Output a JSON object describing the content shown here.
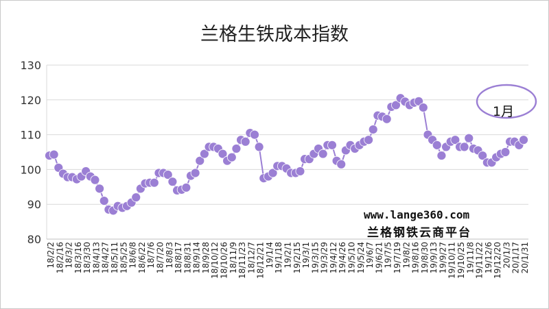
{
  "chart_data": {
    "type": "line",
    "title": "兰格生铁成本指数",
    "xlabel": "",
    "ylabel": "",
    "ylim": [
      80,
      130
    ],
    "yticks": [
      80,
      90,
      100,
      110,
      120,
      130
    ],
    "grid": "horizontal",
    "legend": "none",
    "x_tick_labels": [
      "18/2/2",
      "18/2/16",
      "18/3/2",
      "18/3/16",
      "18/3/30",
      "18/4/13",
      "18/4/27",
      "18/5/11",
      "18/5/25",
      "18/6/8",
      "18/6/22",
      "18/7/6",
      "18/7/20",
      "18/8/3",
      "18/8/17",
      "18/8/31",
      "18/9/14",
      "18/9/28",
      "18/10/12",
      "18/10/26",
      "18/11/9",
      "18/11/23",
      "18/12/7",
      "18/12/21",
      "19/1/4",
      "19/1/18",
      "19/2/1",
      "19/2/15",
      "19/3/1",
      "19/3/15",
      "19/3/29",
      "19/4/12",
      "19/4/26",
      "19/5/10",
      "19/5/24",
      "19/6/7",
      "19/6/21",
      "19/7/5",
      "19/7/19",
      "19/8/2",
      "19/8/16",
      "19/8/30",
      "19/9/13",
      "19/9/27",
      "19/10/11",
      "19/10/25",
      "19/11/8",
      "19/11/22",
      "19/12/6",
      "19/12/20",
      "20/1/3",
      "20/1/17",
      "20/1/31"
    ],
    "series": [
      {
        "color": "#9b7fd4",
        "values": [
          104,
          104.3,
          100.5,
          98.8,
          97.8,
          97.8,
          97.2,
          98,
          99.5,
          98,
          97,
          94.5,
          91,
          88.5,
          88.2,
          89.5,
          89,
          89.5,
          90.5,
          92,
          94.5,
          96,
          96.2,
          96.2,
          99,
          99,
          98.5,
          96.5,
          94,
          94.2,
          94.8,
          98.2,
          99,
          102.5,
          104.5,
          106.5,
          106.5,
          106,
          104.5,
          102.5,
          103.5,
          106,
          108.5,
          108,
          110.5,
          110,
          106.5,
          97.5,
          98,
          99,
          101,
          101,
          100.3,
          99,
          99,
          99.5,
          103,
          103,
          104.5,
          106,
          104.5,
          107,
          107,
          102.5,
          101.5,
          105.5,
          107,
          106,
          107,
          108,
          108.5,
          111.5,
          115.5,
          115.2,
          114.5,
          118,
          118.5,
          120.5,
          119.5,
          118.5,
          119.2,
          119.6,
          117.8,
          110,
          108.5,
          107,
          104,
          106.5,
          108,
          108.5,
          106.5,
          106.5,
          109,
          106,
          105.5,
          104,
          102,
          102,
          103.5,
          104.5,
          105,
          108,
          108,
          107,
          108.5
        ]
      }
    ],
    "annotation": {
      "text": "1月",
      "color": "#9b7fd4"
    },
    "watermark": {
      "url": "www.lange360.com",
      "name": "兰格钢铁云商平台"
    }
  }
}
